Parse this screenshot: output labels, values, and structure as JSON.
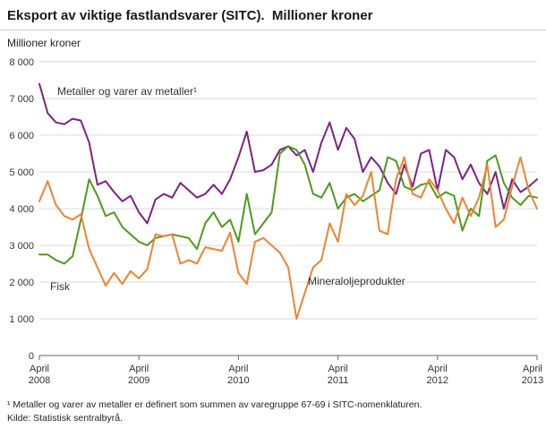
{
  "title": "Eksport av viktige fastlandsvarer (SITC).  Millioner kroner",
  "chart_data": {
    "type": "line",
    "title": "Eksport av viktige fastlandsvarer (SITC). Millioner kroner",
    "xlabel": "",
    "ylabel": "Millioner kroner",
    "ylim": [
      0,
      8000
    ],
    "ytick_step": 1000,
    "yticks": [
      "0",
      "1 000",
      "2 000",
      "3 000",
      "4 000",
      "5 000",
      "6 000",
      "7 000",
      "8 000"
    ],
    "grid": "horizontal",
    "legend_position": "inline-annotations",
    "x_unit": "month",
    "x_range": "April 2008 - April 2013",
    "xticks": [
      {
        "label_top": "April",
        "label_bottom": "2008",
        "month_index": 0
      },
      {
        "label_top": "April",
        "label_bottom": "2009",
        "month_index": 12
      },
      {
        "label_top": "April",
        "label_bottom": "2010",
        "month_index": 24
      },
      {
        "label_top": "April",
        "label_bottom": "2011",
        "month_index": 36
      },
      {
        "label_top": "April",
        "label_bottom": "2012",
        "month_index": 48
      },
      {
        "label_top": "April",
        "label_bottom": "2013",
        "month_index": 60
      }
    ],
    "series": [
      {
        "name": "Metaller og varer av metaller¹",
        "color": "#7c2383",
        "values": [
          7400,
          6600,
          6350,
          6300,
          6450,
          6400,
          5800,
          4650,
          4750,
          4450,
          4200,
          4350,
          3900,
          3600,
          4250,
          4400,
          4300,
          4700,
          4500,
          4300,
          4400,
          4650,
          4400,
          4800,
          5400,
          6100,
          5000,
          5050,
          5200,
          5600,
          5700,
          5450,
          5600,
          5000,
          5800,
          6350,
          5600,
          6200,
          5900,
          5000,
          5400,
          5150,
          4700,
          4400,
          5200,
          4600,
          5500,
          5600,
          4500,
          5600,
          5400,
          4800,
          5200,
          4700,
          4400,
          5000,
          4000,
          4800,
          4450,
          4600,
          4800
        ]
      },
      {
        "name": "Fisk",
        "color": "#4e9a1d",
        "values": [
          2750,
          2750,
          2600,
          2500,
          2700,
          3700,
          4800,
          4350,
          3800,
          3900,
          3500,
          3300,
          3100,
          3000,
          3200,
          3250,
          3300,
          3250,
          3200,
          2900,
          3600,
          3900,
          3500,
          3700,
          3100,
          4400,
          3300,
          3600,
          3900,
          5500,
          5700,
          5600,
          5200,
          4400,
          4300,
          4700,
          4000,
          4300,
          4400,
          4200,
          4350,
          4500,
          5400,
          5300,
          4600,
          4500,
          4650,
          4700,
          4300,
          4450,
          4350,
          3400,
          4000,
          3800,
          5300,
          5450,
          4700,
          4300,
          4100,
          4350,
          4300
        ]
      },
      {
        "name": "Mineraloljeprodukter",
        "color": "#ee8330",
        "values": [
          4200,
          4750,
          4100,
          3800,
          3700,
          3850,
          2900,
          2400,
          1900,
          2250,
          1950,
          2300,
          2100,
          2350,
          3300,
          3250,
          3300,
          2500,
          2600,
          2500,
          2950,
          2900,
          2850,
          3350,
          2250,
          1950,
          3100,
          3200,
          3000,
          2800,
          2400,
          1000,
          1700,
          2400,
          2600,
          3600,
          3100,
          4400,
          4100,
          4350,
          5000,
          3400,
          3300,
          4800,
          5400,
          4400,
          4300,
          4800,
          4500,
          4000,
          3600,
          4300,
          3800,
          4300,
          5200,
          3500,
          3700,
          4600,
          5400,
          4500,
          4000
        ]
      }
    ],
    "annotations": [
      {
        "text": "Metaller og varer av metaller¹",
        "series": 0
      },
      {
        "text": "Fisk",
        "series": 1
      },
      {
        "text": "Mineraloljeprodukter",
        "series": 2
      }
    ]
  },
  "footnotes": {
    "definition": "¹ Metaller og varer av metaller er definert som summen av varegruppe 67-69 i SITC-nomenklaturen.",
    "source": "Kilde: Statistisk sentralbyrå."
  }
}
